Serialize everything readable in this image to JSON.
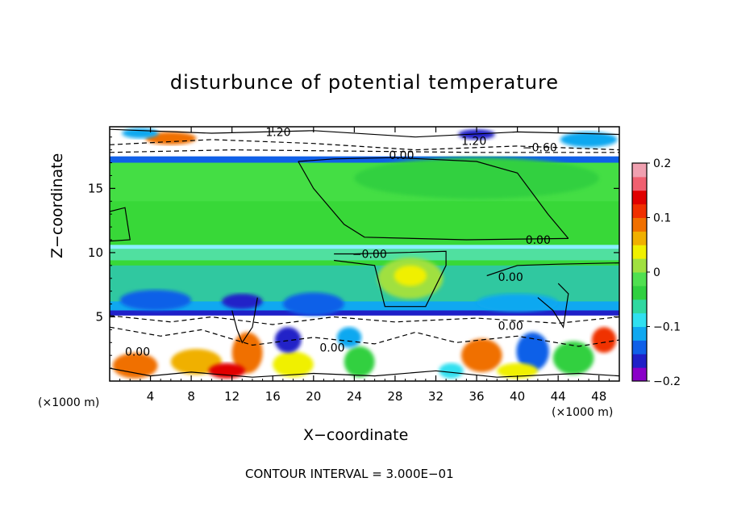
{
  "chart_data": {
    "type": "heatmap",
    "title": "disturbunce of potential temperature",
    "xlabel": "X−coordinate",
    "ylabel": "Z−coordinate",
    "x_unit_left": "(×1000 m)",
    "x_unit_right": "(×1000 m)",
    "footer": "CONTOUR INTERVAL = 3.000E−01",
    "xlim": [
      0,
      50
    ],
    "ylim": [
      0,
      19.8
    ],
    "x_ticks": [
      4,
      8,
      12,
      16,
      20,
      24,
      28,
      32,
      36,
      40,
      44,
      48
    ],
    "x_tick_labels": [
      "4",
      "8",
      "12",
      "16",
      "20",
      "24",
      "28",
      "32",
      "36",
      "40",
      "44",
      "48"
    ],
    "y_ticks": [
      5,
      10,
      15
    ],
    "y_tick_labels": [
      "5",
      "10",
      "15"
    ],
    "colorbar": {
      "min": -0.2,
      "max": 0.2,
      "ticks": [
        0.2,
        0.1,
        0,
        -0.1,
        -0.2
      ],
      "tick_labels": [
        "0.2",
        "0.1",
        "0",
        "−0.1",
        "−0.2"
      ],
      "colors": [
        "#8a00c8",
        "#2020c8",
        "#1060e8",
        "#10a8f0",
        "#30e0f0",
        "#30d8a0",
        "#30d040",
        "#50e050",
        "#a0e040",
        "#f0f000",
        "#f0b000",
        "#f07000",
        "#f03000",
        "#e00000",
        "#f06070",
        "#f0a0b0"
      ]
    },
    "contour_labels": [
      {
        "text": "1.20",
        "x": 15.3,
        "y": 19.4
      },
      {
        "text": "1.20",
        "x": 34.5,
        "y": 18.7
      },
      {
        "text": "−0.60",
        "x": 40.5,
        "y": 18.2
      },
      {
        "text": "0.00",
        "x": 27.4,
        "y": 17.6
      },
      {
        "text": "0.00",
        "x": 40.8,
        "y": 11.0
      },
      {
        "text": "−0.00",
        "x": 23.8,
        "y": 9.9
      },
      {
        "text": "0.00",
        "x": 38.1,
        "y": 8.1
      },
      {
        "text": "0.00",
        "x": 38.1,
        "y": 4.3
      },
      {
        "text": "0.00",
        "x": 20.6,
        "y": 2.6
      },
      {
        "text": "0.00",
        "x": 1.5,
        "y": 2.3
      }
    ]
  }
}
